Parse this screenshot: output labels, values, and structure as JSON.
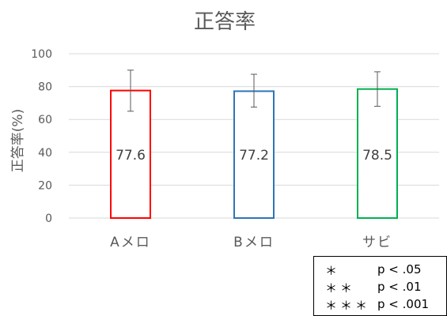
{
  "chart_data": {
    "type": "bar",
    "title": "正答率",
    "xlabel": "",
    "ylabel": "正答率(%)",
    "ylim": [
      0,
      100
    ],
    "yticks": [
      0,
      20,
      40,
      60,
      80,
      100
    ],
    "grid": true,
    "categories": [
      "Aメロ",
      "Bメロ",
      "サビ"
    ],
    "values": [
      77.6,
      77.2,
      78.5
    ],
    "error_bars": {
      "lower": [
        65,
        67.5,
        68
      ],
      "upper": [
        90,
        87.5,
        89
      ]
    },
    "data_labels": [
      "77.6",
      "77.2",
      "78.5"
    ],
    "colors": [
      "#ff0000",
      "#2e75b6",
      "#00b050"
    ]
  },
  "significance_legend": [
    {
      "symbol": "＊",
      "label": "p < .05"
    },
    {
      "symbol": "＊＊",
      "label": "p < .01"
    },
    {
      "symbol": "＊＊＊",
      "label": "p < .001"
    }
  ]
}
